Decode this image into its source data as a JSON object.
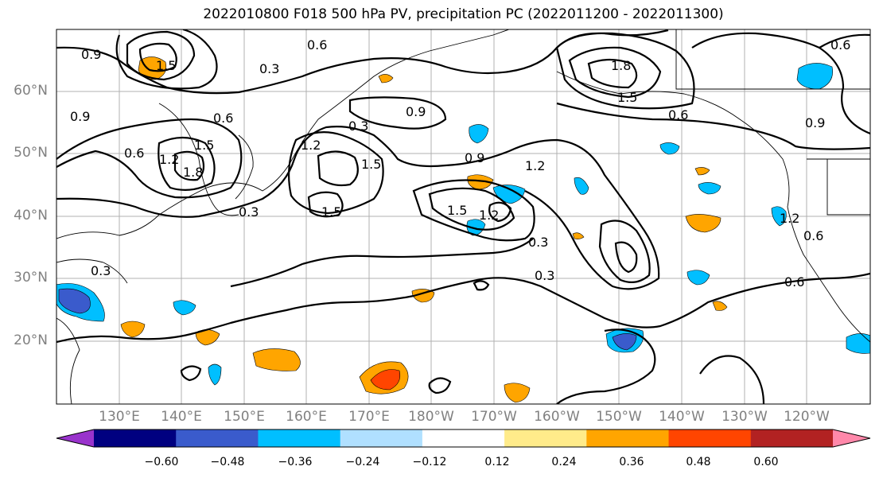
{
  "title": "2022010800 F018 500 hPa PV, precipitation PC (2022011200 - 2022011300)",
  "lat_ticks": [
    "60°N",
    "50°N",
    "40°N",
    "30°N",
    "20°N"
  ],
  "lon_ticks": [
    "130°E",
    "140°E",
    "150°E",
    "160°E",
    "170°E",
    "180°W",
    "170°W",
    "160°W",
    "150°W",
    "140°W",
    "130°W",
    "120°W"
  ],
  "colorbar": {
    "ticks": [
      "−0.60",
      "−0.48",
      "−0.36",
      "−0.24",
      "−0.12",
      "0.12",
      "0.24",
      "0.36",
      "0.48",
      "0.60"
    ],
    "colors": [
      "#9933cc",
      "#000080",
      "#3a5bcc",
      "#00bfff",
      "#b0e0ff",
      "#ffffff",
      "#ffeb8a",
      "#ffa500",
      "#ff4500",
      "#b22222",
      "#ff88aa"
    ]
  },
  "contour_labels": [
    "0.9",
    "0.6",
    "0.3",
    "1.2",
    "1.5",
    "1.8",
    "1.5",
    "1.2",
    "0.6",
    "0.9",
    "0.3",
    "0.6",
    "1.5",
    "1.2",
    "0.3",
    "0.3",
    "0.6",
    "0.9",
    "1.8",
    "1.5",
    "0.6",
    "0.9",
    "1.5",
    "0.6",
    "0.3",
    "0.9",
    "1.2",
    "0.6",
    "1.5",
    "0.3",
    "1.2"
  ]
}
